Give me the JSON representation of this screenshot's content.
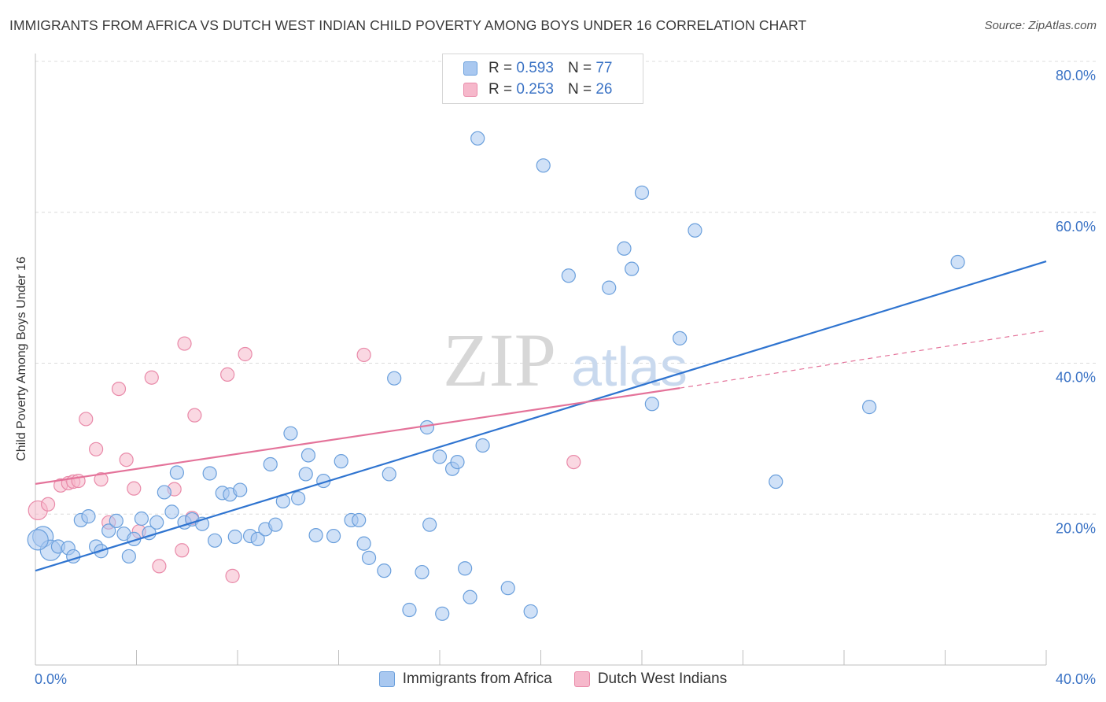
{
  "header": {
    "title": "IMMIGRANTS FROM AFRICA VS DUTCH WEST INDIAN CHILD POVERTY AMONG BOYS UNDER 16 CORRELATION CHART",
    "source": "Source: ZipAtlas.com"
  },
  "watermark": {
    "zip": "ZIP",
    "atlas": "atlas"
  },
  "legend": {
    "r_label": "R =",
    "n_label": "N =",
    "series1": {
      "r": "0.593",
      "n": "77"
    },
    "series2": {
      "r": "0.253",
      "n": "26"
    }
  },
  "colors": {
    "series1_fill": "#a9c8f0",
    "series1_stroke": "#6a9fdc",
    "series1_line": "#2f74d0",
    "series2_fill": "#f6b8cb",
    "series2_stroke": "#e98aa9",
    "series2_line": "#e4739a",
    "grid": "#dcdcdc",
    "tick_label": "#3b73c5"
  },
  "chart_data": {
    "type": "scatter",
    "title": "IMMIGRANTS FROM AFRICA VS DUTCH WEST INDIAN CHILD POVERTY AMONG BOYS UNDER 16 CORRELATION CHART",
    "xlabel": "",
    "ylabel": "Child Poverty Among Boys Under 16",
    "xlim": [
      0,
      40
    ],
    "ylim": [
      0,
      80
    ],
    "x_tick_labels": [
      "0.0%",
      "40.0%"
    ],
    "y_tick_labels": [
      "20.0%",
      "40.0%",
      "60.0%",
      "80.0%"
    ],
    "y_ticks": [
      20,
      40,
      60,
      80
    ],
    "grid": true,
    "legend_position": "top-center",
    "series": [
      {
        "name": "Immigrants from Africa",
        "r": 0.593,
        "n": 77,
        "trend": {
          "x": [
            0,
            40
          ],
          "y": [
            12.5,
            53.5
          ],
          "dashed_extension": false
        },
        "points": [
          [
            0.3,
            17.0
          ],
          [
            0.6,
            15.2
          ],
          [
            0.9,
            15.7
          ],
          [
            1.3,
            15.5
          ],
          [
            1.5,
            14.4
          ],
          [
            1.8,
            19.2
          ],
          [
            2.1,
            19.7
          ],
          [
            2.4,
            15.7
          ],
          [
            2.6,
            15.1
          ],
          [
            2.9,
            17.8
          ],
          [
            3.2,
            19.1
          ],
          [
            3.5,
            17.4
          ],
          [
            3.7,
            14.4
          ],
          [
            3.9,
            16.7
          ],
          [
            4.2,
            19.4
          ],
          [
            4.5,
            17.5
          ],
          [
            4.8,
            18.9
          ],
          [
            5.1,
            22.9
          ],
          [
            5.4,
            20.3
          ],
          [
            5.6,
            25.5
          ],
          [
            5.9,
            18.9
          ],
          [
            6.2,
            19.3
          ],
          [
            6.6,
            18.7
          ],
          [
            6.9,
            25.4
          ],
          [
            7.1,
            16.5
          ],
          [
            7.4,
            22.8
          ],
          [
            7.7,
            22.6
          ],
          [
            7.9,
            17.0
          ],
          [
            8.1,
            23.2
          ],
          [
            8.5,
            17.1
          ],
          [
            8.8,
            16.7
          ],
          [
            9.1,
            18.0
          ],
          [
            9.3,
            26.6
          ],
          [
            9.5,
            18.6
          ],
          [
            9.8,
            21.7
          ],
          [
            10.1,
            30.7
          ],
          [
            10.4,
            22.1
          ],
          [
            10.7,
            25.3
          ],
          [
            10.8,
            27.8
          ],
          [
            11.1,
            17.2
          ],
          [
            11.4,
            24.4
          ],
          [
            11.8,
            17.1
          ],
          [
            12.1,
            27.0
          ],
          [
            12.5,
            19.2
          ],
          [
            12.8,
            19.2
          ],
          [
            13.0,
            16.1
          ],
          [
            13.2,
            14.2
          ],
          [
            13.8,
            12.5
          ],
          [
            14.0,
            25.3
          ],
          [
            14.2,
            38.0
          ],
          [
            14.8,
            7.3
          ],
          [
            15.3,
            12.3
          ],
          [
            15.5,
            31.5
          ],
          [
            15.6,
            18.6
          ],
          [
            16.0,
            27.6
          ],
          [
            16.1,
            6.8
          ],
          [
            16.5,
            26.0
          ],
          [
            16.7,
            26.9
          ],
          [
            17.0,
            12.8
          ],
          [
            17.2,
            9.0
          ],
          [
            17.5,
            69.8
          ],
          [
            17.7,
            29.1
          ],
          [
            18.7,
            10.2
          ],
          [
            19.6,
            7.1
          ],
          [
            20.1,
            66.2
          ],
          [
            21.1,
            51.6
          ],
          [
            22.7,
            50.0
          ],
          [
            23.3,
            55.2
          ],
          [
            23.6,
            52.5
          ],
          [
            24.0,
            62.6
          ],
          [
            24.4,
            34.6
          ],
          [
            25.5,
            43.3
          ],
          [
            26.1,
            57.6
          ],
          [
            29.3,
            24.3
          ],
          [
            33.0,
            34.2
          ],
          [
            36.5,
            53.4
          ],
          [
            0.1,
            16.6
          ]
        ]
      },
      {
        "name": "Dutch West Indians",
        "r": 0.253,
        "n": 26,
        "trend": {
          "x": [
            0,
            25.5
          ],
          "y": [
            24.0,
            36.7
          ],
          "dashed_extension": true,
          "dashed_to": [
            40,
            44.3
          ]
        },
        "points": [
          [
            0.1,
            20.5
          ],
          [
            0.5,
            21.3
          ],
          [
            1.0,
            23.8
          ],
          [
            1.3,
            24.1
          ],
          [
            1.5,
            24.3
          ],
          [
            1.7,
            24.4
          ],
          [
            2.0,
            32.6
          ],
          [
            2.4,
            28.6
          ],
          [
            2.6,
            24.6
          ],
          [
            2.9,
            18.9
          ],
          [
            3.3,
            36.6
          ],
          [
            3.6,
            27.2
          ],
          [
            3.9,
            23.4
          ],
          [
            4.1,
            17.7
          ],
          [
            4.6,
            38.1
          ],
          [
            4.9,
            13.1
          ],
          [
            5.5,
            23.3
          ],
          [
            5.8,
            15.2
          ],
          [
            5.9,
            42.6
          ],
          [
            6.2,
            19.5
          ],
          [
            6.3,
            33.1
          ],
          [
            7.6,
            38.5
          ],
          [
            7.8,
            11.8
          ],
          [
            8.3,
            41.2
          ],
          [
            13.0,
            41.1
          ],
          [
            21.3,
            26.9
          ]
        ]
      }
    ]
  },
  "bottom_legend": {
    "item1": "Immigrants from Africa",
    "item2": "Dutch West Indians"
  }
}
